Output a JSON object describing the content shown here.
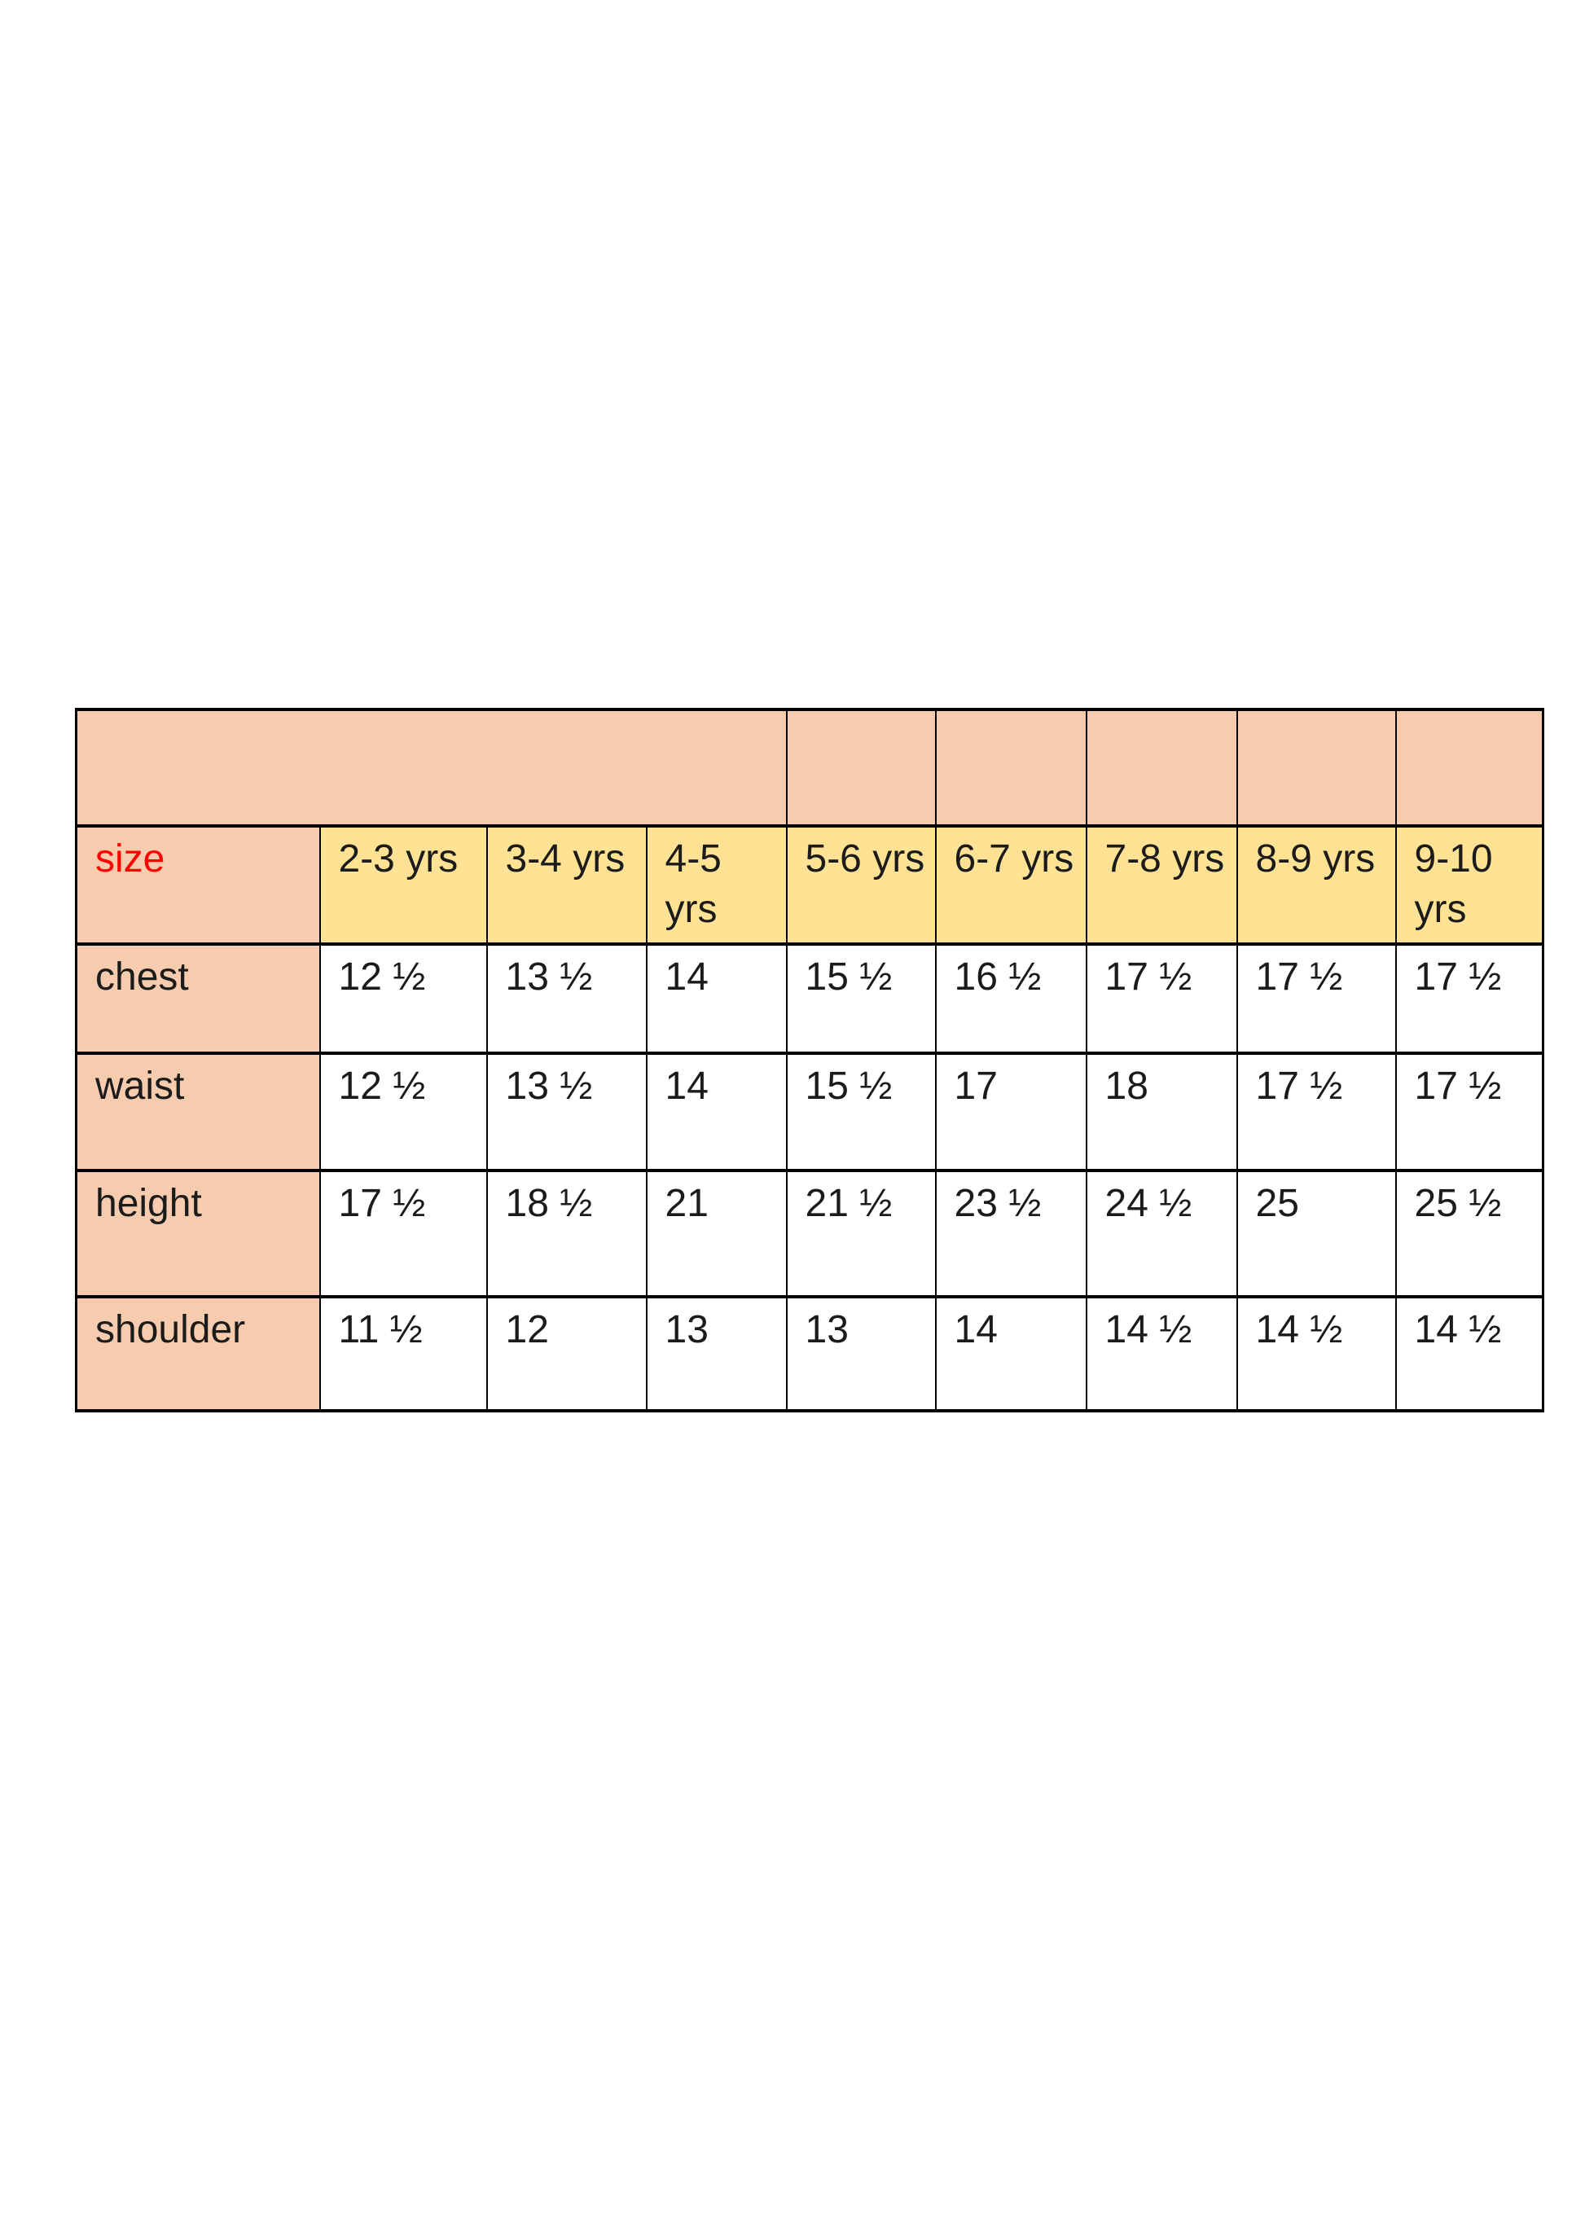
{
  "page": {
    "background_color": "#ffffff"
  },
  "table": {
    "corner_label": "size",
    "columns": [
      "2-3 yrs",
      "3-4 yrs",
      "4-5 yrs",
      "5-6 yrs",
      "6-7 yrs",
      "7-8 yrs",
      "8-9 yrs",
      "9-10 yrs"
    ],
    "rows": [
      {
        "label": "chest",
        "values": [
          "12 ½",
          "13 ½",
          "14",
          "15 ½",
          "16 ½",
          "17 ½",
          "17 ½",
          "17 ½"
        ]
      },
      {
        "label": "waist",
        "values": [
          "12 ½",
          "13 ½",
          "14",
          "15 ½",
          "17",
          "18",
          "17 ½",
          "17 ½"
        ]
      },
      {
        "label": "height",
        "values": [
          "17 ½",
          "18 ½",
          "21",
          "21 ½",
          "23 ½",
          "24 ½",
          "25",
          "25 ½"
        ]
      },
      {
        "label": "shoulder",
        "values": [
          "11 ½",
          "12",
          "13",
          "13",
          "14",
          "14 ½",
          "14 ½",
          "14 ½"
        ]
      }
    ],
    "colors": {
      "band_fill": "#f7cbad",
      "header_fill": "#ffe293",
      "corner_label_color": "#ff0000",
      "text_color": "#1b1b1b",
      "border_color": "#000000"
    }
  }
}
